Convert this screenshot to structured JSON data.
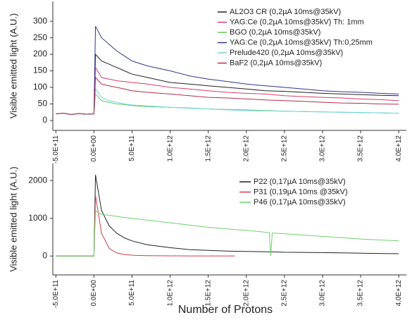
{
  "chart_data": [
    {
      "type": "line",
      "ylabel": "Visible emitted light (A.U.)",
      "legend": "upper right",
      "x": [
        -500000000000.0,
        -400000000000.0,
        -300000000000.0,
        -200000000000.0,
        -100000000000.0,
        0,
        20000000000.0,
        100000000000.0,
        200000000000.0,
        300000000000.0,
        400000000000.0,
        500000000000.0,
        700000000000.0,
        1000000000000.0,
        1250000000000.0,
        1500000000000.0,
        1750000000000.0,
        2000000000000.0,
        2250000000000.0,
        2500000000000.0,
        2750000000000.0,
        3000000000000.0,
        3250000000000.0,
        3500000000000.0,
        3750000000000.0,
        4000000000000.0
      ],
      "series": [
        {
          "name": "AL2O3 CR (0,2µA 10ms@35kV)",
          "color": "#222222",
          "values": [
            20,
            22,
            18,
            21,
            19,
            20,
            200,
            180,
            170,
            160,
            150,
            140,
            130,
            115,
            110,
            105,
            100,
            95,
            90,
            88,
            85,
            82,
            80,
            78,
            76,
            75
          ]
        },
        {
          "name": "YAG:Ce (0,2µA  10ms@35kV) Th: 1mm",
          "color": "#d63c6a",
          "values": [
            20,
            22,
            18,
            21,
            19,
            20,
            160,
            130,
            125,
            120,
            118,
            115,
            110,
            100,
            95,
            90,
            85,
            82,
            80,
            75,
            72,
            70,
            68,
            65,
            63,
            60
          ]
        },
        {
          "name": "BGO (0,2µA  10ms@35kV)",
          "color": "#5fc85f",
          "values": [
            20,
            22,
            18,
            21,
            19,
            20,
            80,
            60,
            55,
            50,
            48,
            45,
            42,
            40,
            38,
            35,
            33,
            32,
            30,
            28,
            27,
            26,
            25,
            24,
            23,
            22
          ]
        },
        {
          "name": "YAG:Ce (0,2µA  10ms@35kV) Th:0,25mm",
          "color": "#33338a",
          "values": [
            20,
            22,
            18,
            21,
            19,
            20,
            285,
            250,
            230,
            210,
            195,
            180,
            165,
            150,
            135,
            125,
            118,
            110,
            105,
            100,
            95,
            90,
            87,
            85,
            82,
            80
          ]
        },
        {
          "name": "Prelude420 (0,2µA  10ms@35kV)",
          "color": "#6fd3e0",
          "values": [
            20,
            22,
            18,
            21,
            19,
            20,
            95,
            70,
            60,
            55,
            50,
            47,
            44,
            40,
            37,
            35,
            32,
            30,
            29,
            28,
            27,
            26,
            25,
            24,
            23,
            22
          ]
        },
        {
          "name": "BaF2 (0,2µA  10ms@35kV)",
          "color": "#b0304a",
          "values": [
            20,
            22,
            18,
            21,
            19,
            20,
            130,
            110,
            105,
            100,
            95,
            90,
            85,
            80,
            75,
            70,
            68,
            65,
            62,
            60,
            58,
            55,
            53,
            52,
            50,
            49
          ]
        }
      ],
      "xlim": [
        -540000000000.0,
        4100000000000.0
      ],
      "ylim": [
        -30,
        360
      ],
      "xticks": [
        {
          "value": -500000000000.0,
          "label": "-5.0E+11"
        },
        {
          "value": 0,
          "label": "0.0E+00"
        },
        {
          "value": 500000000000.0,
          "label": "5.0E+11"
        },
        {
          "value": 1000000000000.0,
          "label": "1.0E+12"
        },
        {
          "value": 1500000000000.0,
          "label": "1.5E+12"
        },
        {
          "value": 2000000000000.0,
          "label": "2.0E+12"
        },
        {
          "value": 2500000000000.0,
          "label": "2.5E+12"
        },
        {
          "value": 3000000000000.0,
          "label": "3.0E+12"
        },
        {
          "value": 3500000000000.0,
          "label": "3.5E+12"
        },
        {
          "value": 4000000000000.0,
          "label": "4.0E+12"
        }
      ],
      "yticks": [
        0,
        50,
        100,
        150,
        200,
        250,
        300
      ]
    },
    {
      "type": "line",
      "ylabel": "Visible emitted light (A.U.)",
      "xlabel": "Number of Protons",
      "legend": "upper right",
      "x": [
        -500000000000.0,
        -250000000000.0,
        0,
        20000000000.0,
        100000000000.0,
        200000000000.0,
        300000000000.0,
        400000000000.0,
        500000000000.0,
        700000000000.0,
        1000000000000.0,
        1250000000000.0,
        1500000000000.0,
        1750000000000.0,
        1850000000000.0,
        2000000000000.0,
        2300000000000.0,
        2320000000000.0,
        2340000000000.0,
        2500000000000.0,
        3000000000000.0,
        3500000000000.0,
        4000000000000.0
      ],
      "series": [
        {
          "name": "P22 (0,17µA 10ms@35kV)",
          "color": "#222222",
          "values": [
            0,
            0,
            0,
            2150,
            1200,
            800,
            600,
            480,
            400,
            300,
            220,
            170,
            150,
            130,
            125,
            120,
            110,
            110,
            110,
            100,
            90,
            75,
            60
          ]
        },
        {
          "name": "P31 (0,19µA 10ms @35kV)",
          "color": "#d23c4a",
          "values": [
            0,
            0,
            0,
            1600,
            600,
            200,
            80,
            40,
            20,
            10,
            5,
            3,
            2,
            2,
            2,
            null,
            null,
            null,
            null,
            null,
            null,
            null,
            null
          ]
        },
        {
          "name": "P46 (0,17µA 10ms@35kV)",
          "color": "#6fd06f",
          "values": [
            0,
            0,
            0,
            1200,
            1100,
            1080,
            1050,
            1020,
            1000,
            950,
            880,
            820,
            760,
            720,
            700,
            680,
            620,
            0,
            610,
            590,
            520,
            450,
            400
          ]
        }
      ],
      "xlim": [
        -540000000000.0,
        4100000000000.0
      ],
      "ylim": [
        -500,
        2450
      ],
      "xticks": [
        {
          "value": -500000000000.0,
          "label": "-5.0E+11"
        },
        {
          "value": 0,
          "label": "0.0E+00"
        },
        {
          "value": 500000000000.0,
          "label": "5.0E+11"
        },
        {
          "value": 1000000000000.0,
          "label": "1.0E+12"
        },
        {
          "value": 1500000000000.0,
          "label": "1.5E+12"
        },
        {
          "value": 2000000000000.0,
          "label": "2.0E+12"
        },
        {
          "value": 2500000000000.0,
          "label": "2.5E+12"
        },
        {
          "value": 3000000000000.0,
          "label": "3.0E+12"
        },
        {
          "value": 3500000000000.0,
          "label": "3.5E+12"
        },
        {
          "value": 4000000000000.0,
          "label": "4.0E+12"
        }
      ],
      "yticks": [
        0,
        1000,
        2000
      ]
    }
  ]
}
